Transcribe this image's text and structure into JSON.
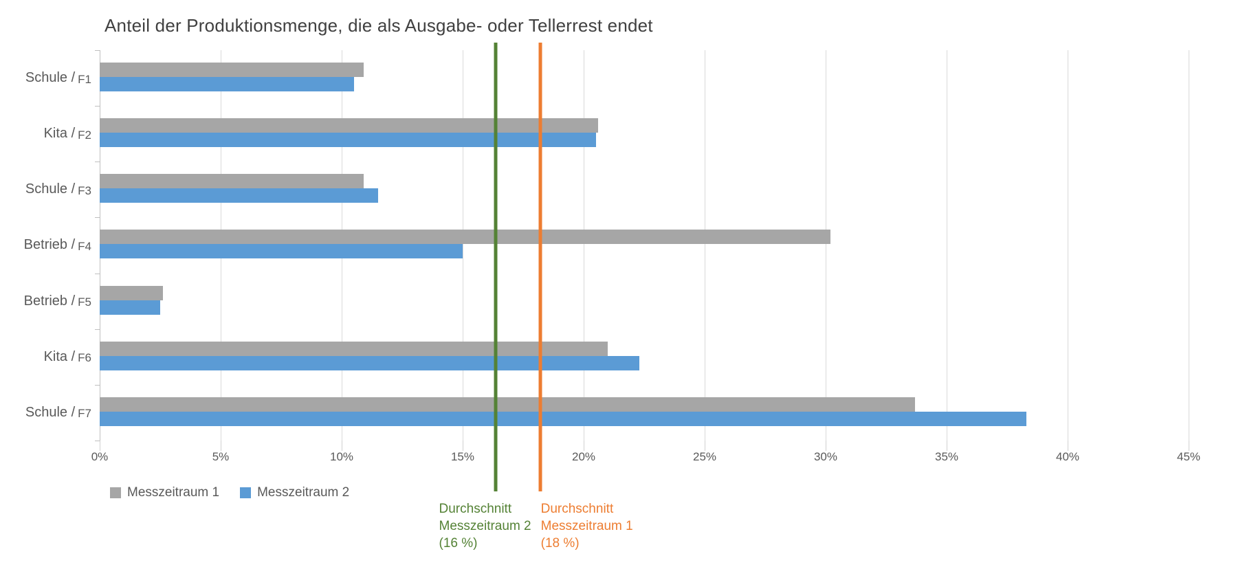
{
  "chart_data": {
    "type": "bar",
    "orientation": "horizontal",
    "title": "Anteil der Produktionsmenge, die als Ausgabe- oder Tellerrest endet",
    "categories": [
      {
        "prefix": "Schule /",
        "code": "F1"
      },
      {
        "prefix": "Kita /",
        "code": "F2"
      },
      {
        "prefix": "Schule /",
        "code": "F3"
      },
      {
        "prefix": "Betrieb /",
        "code": "F4"
      },
      {
        "prefix": "Betrieb /",
        "code": "F5"
      },
      {
        "prefix": "Kita /",
        "code": "F6"
      },
      {
        "prefix": "Schule /",
        "code": "F7"
      }
    ],
    "series": [
      {
        "name": "Messzeitraum 1",
        "color": "#a6a6a6",
        "values": [
          10.9,
          20.6,
          10.9,
          30.2,
          2.6,
          21.0,
          33.7
        ]
      },
      {
        "name": "Messzeitraum 2",
        "color": "#5b9bd5",
        "values": [
          10.5,
          20.5,
          11.5,
          15.0,
          2.5,
          22.3,
          38.3
        ]
      }
    ],
    "x_ticks": [
      "0%",
      "5%",
      "10%",
      "15%",
      "20%",
      "25%",
      "30%",
      "35%",
      "40%",
      "45%"
    ],
    "xlim": [
      0,
      45
    ],
    "grid": true,
    "legend_position": "bottom-left",
    "reference_lines": [
      {
        "value": 16.35,
        "color": "#548235",
        "label_lines": [
          "Durchschnitt",
          "Messzeitraum 2",
          "(16 %)"
        ]
      },
      {
        "value": 18.2,
        "color": "#ED7D31",
        "label_lines": [
          "Durchschnitt",
          "Messzeitraum 1",
          "(18 %)"
        ]
      }
    ]
  },
  "colors": {
    "gridline": "#d9d9d9",
    "axis_line": "#bfbfbf",
    "title_text": "#404040",
    "axis_text": "#595959",
    "series1": "#a6a6a6",
    "series2": "#5b9bd5",
    "avg_line_green": "#548235",
    "avg_line_orange": "#ED7D31",
    "background": "#ffffff"
  }
}
